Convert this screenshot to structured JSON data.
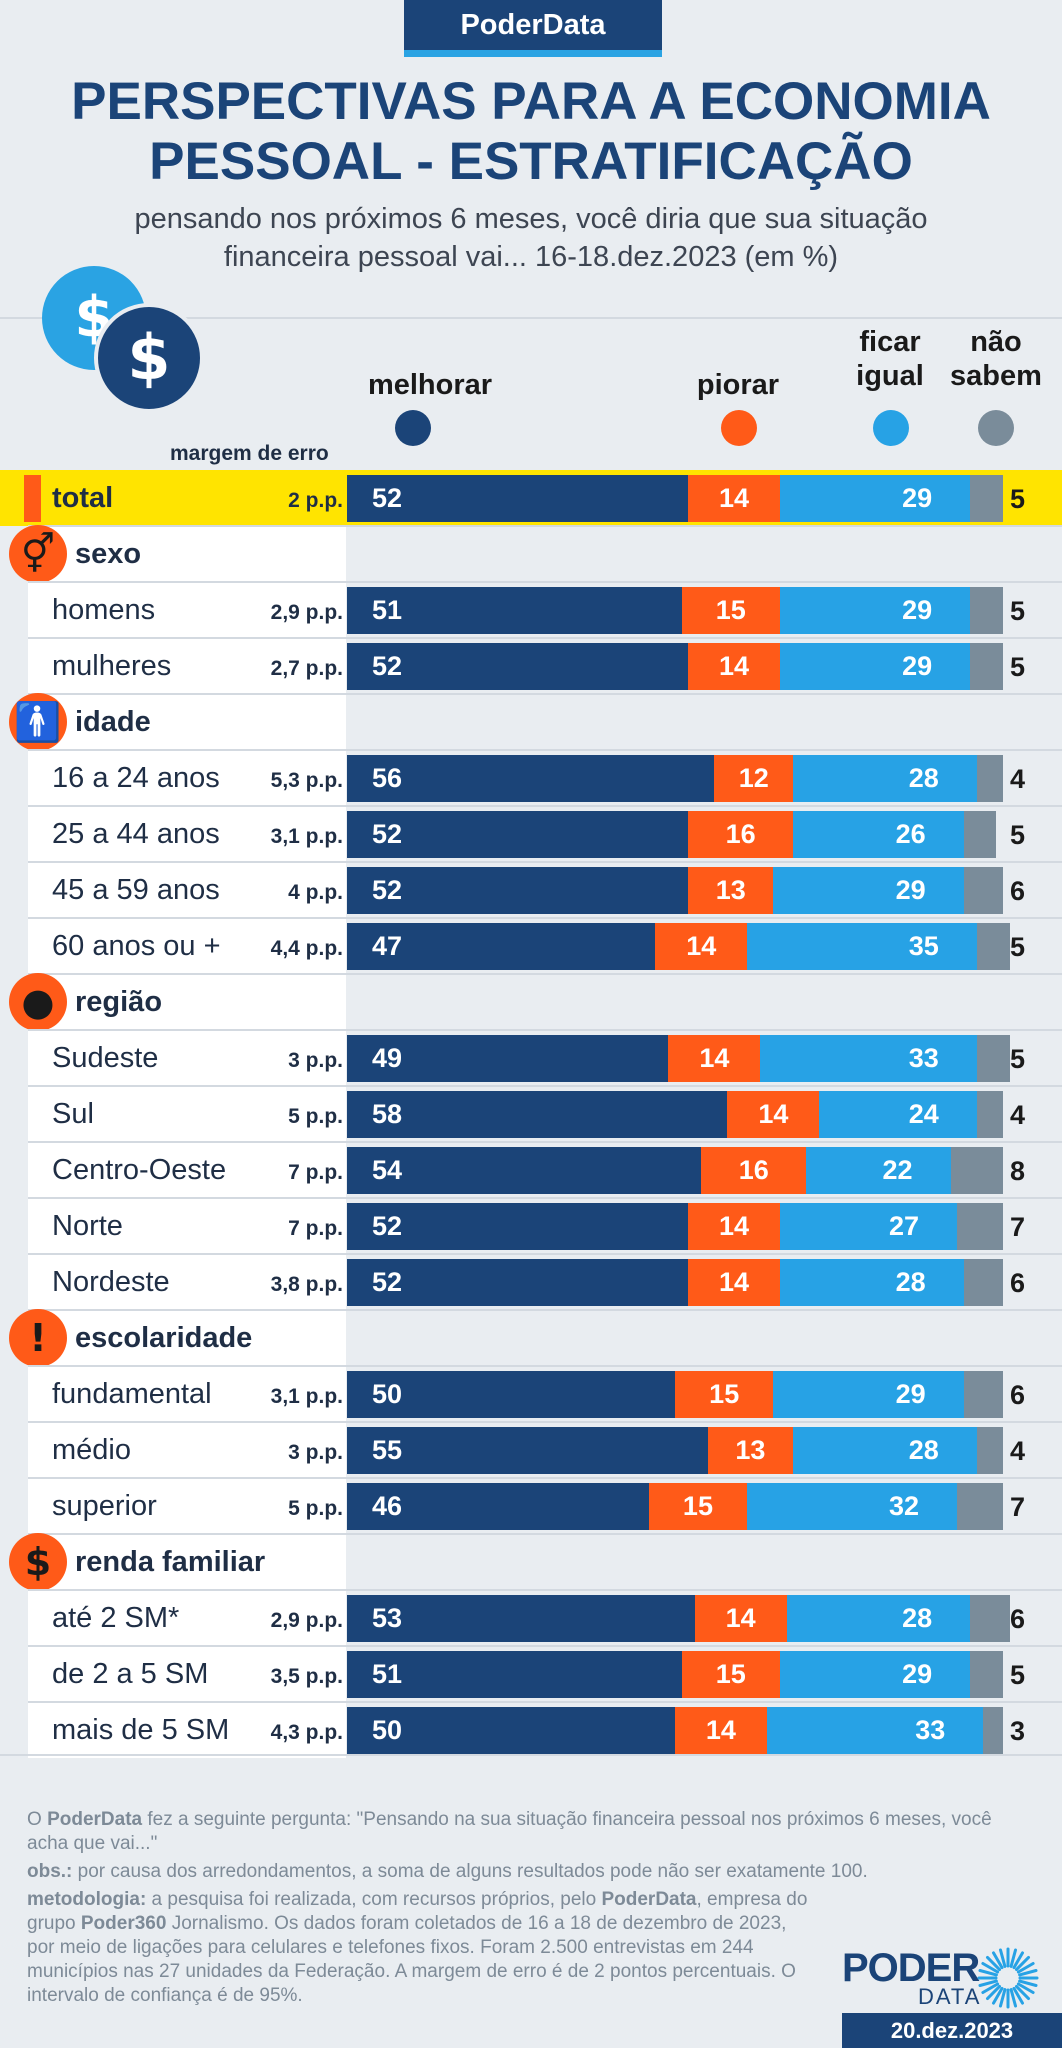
{
  "header": {
    "badge": "PoderData",
    "title_line1": "PERSPECTIVAS PARA A ECONOMIA",
    "title_line2": "PESSOAL - ESTRATIFICAÇÃO",
    "subtitle_line1": "pensando nos próximos 6 meses, você diria que sua situação",
    "subtitle_line2": "financeira pessoal vai... 16-18.dez.2023 (em %)"
  },
  "legend": {
    "melhorar": "melhorar",
    "piorar": "piorar",
    "igual_line1": "ficar",
    "igual_line2": "igual",
    "nao_line1": "não",
    "nao_line2": "sabem",
    "margin_header": "margem de erro"
  },
  "colors": {
    "melhorar": "#1b4478",
    "piorar": "#ff5a18",
    "igual": "#27a2e5",
    "nao_sabem": "#7a8c9a",
    "highlight": "#ffe400"
  },
  "chart_data": {
    "type": "bar",
    "orientation": "horizontal-stacked",
    "series_names": [
      "melhorar",
      "piorar",
      "ficar igual",
      "não sabem"
    ],
    "rows": [
      {
        "kind": "total",
        "label": "total",
        "margin": "2 p.p.",
        "values": [
          52,
          14,
          29,
          5
        ]
      },
      {
        "kind": "section",
        "label": "sexo",
        "icon": "gender-icon"
      },
      {
        "kind": "data",
        "label": "homens",
        "margin": "2,9 p.p.",
        "values": [
          51,
          15,
          29,
          5
        ]
      },
      {
        "kind": "data",
        "label": "mulheres",
        "margin": "2,7 p.p.",
        "values": [
          52,
          14,
          29,
          5
        ]
      },
      {
        "kind": "section",
        "label": "idade",
        "icon": "person-icon"
      },
      {
        "kind": "data",
        "label": "16 a 24 anos",
        "margin": "5,3 p.p.",
        "values": [
          56,
          12,
          28,
          4
        ]
      },
      {
        "kind": "data",
        "label": "25 a 44 anos",
        "margin": "3,1 p.p.",
        "values": [
          52,
          16,
          26,
          5
        ]
      },
      {
        "kind": "data",
        "label": "45 a 59 anos",
        "margin": "4 p.p.",
        "values": [
          52,
          13,
          29,
          6
        ]
      },
      {
        "kind": "data",
        "label": "60 anos ou +",
        "margin": "4,4 p.p.",
        "values": [
          47,
          14,
          35,
          5
        ]
      },
      {
        "kind": "section",
        "label": "região",
        "icon": "brazil-map-icon"
      },
      {
        "kind": "data",
        "label": "Sudeste",
        "margin": "3 p.p.",
        "values": [
          49,
          14,
          33,
          5
        ]
      },
      {
        "kind": "data",
        "label": "Sul",
        "margin": "5 p.p.",
        "values": [
          58,
          14,
          24,
          4
        ]
      },
      {
        "kind": "data",
        "label": "Centro-Oeste",
        "margin": "7 p.p.",
        "values": [
          54,
          16,
          22,
          8
        ]
      },
      {
        "kind": "data",
        "label": "Norte",
        "margin": "7 p.p.",
        "values": [
          52,
          14,
          27,
          7
        ]
      },
      {
        "kind": "data",
        "label": "Nordeste",
        "margin": "3,8 p.p.",
        "values": [
          52,
          14,
          28,
          6
        ]
      },
      {
        "kind": "section",
        "label": "escolaridade",
        "icon": "exclamation-icon"
      },
      {
        "kind": "data",
        "label": "fundamental",
        "margin": "3,1 p.p.",
        "values": [
          50,
          15,
          29,
          6
        ]
      },
      {
        "kind": "data",
        "label": "médio",
        "margin": "3 p.p.",
        "values": [
          55,
          13,
          28,
          4
        ]
      },
      {
        "kind": "data",
        "label": "superior",
        "margin": "5 p.p.",
        "values": [
          46,
          15,
          32,
          7
        ]
      },
      {
        "kind": "section",
        "label": "renda familiar",
        "icon": "dollar-icon"
      },
      {
        "kind": "data",
        "label": "até 2 SM*",
        "margin": "2,9 p.p.",
        "values": [
          53,
          14,
          28,
          6
        ]
      },
      {
        "kind": "data",
        "label": "de 2 a 5 SM",
        "margin": "3,5 p.p.",
        "values": [
          51,
          15,
          29,
          5
        ]
      },
      {
        "kind": "data",
        "label": "mais de 5 SM",
        "margin": "4,3 p.p.",
        "values": [
          50,
          14,
          33,
          3
        ]
      }
    ]
  },
  "footer": {
    "q_brand": "PoderData",
    "q_text": " fez a seguinte pergunta: \"Pensando na sua situação financeira pessoal nos próximos 6 meses, você acha que vai...\"",
    "obs_label": "obs.:",
    "obs_text": " por causa dos arredondamentos, a soma de alguns resultados pode não ser exatamente 100.",
    "met_label": "metodologia:",
    "met_text1": " a pesquisa foi realizada, com recursos próprios, pelo ",
    "met_brand1": "PoderData",
    "met_text2": ", empresa do grupo ",
    "met_brand2": "Poder360",
    "met_text3": " Jornalismo. Os dados foram coletados de 16 a 18 de dezembro de 2023, por meio de ligações para celulares e telefones fixos. Foram 2.500 entrevistas em 244 municípios nas 27 unidades da Federação. A margem de erro é de 2 pontos percentuais. O intervalo de confiança é de 95%.",
    "logo_top": "PODER",
    "logo_bottom": "DATA",
    "date": "20.dez.2023"
  }
}
